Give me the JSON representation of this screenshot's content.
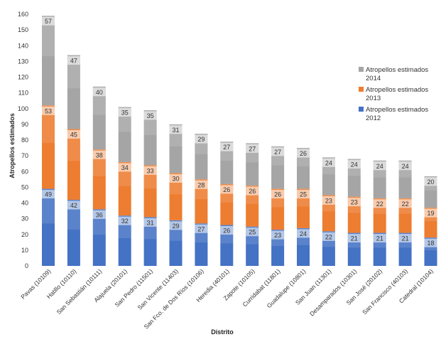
{
  "chart_data": {
    "type": "bar",
    "stacked": true,
    "title": "",
    "xlabel": "Distrito",
    "ylabel": "Atropellos estimados",
    "ylim": [
      0,
      160
    ],
    "yticks": [
      0,
      10,
      20,
      30,
      40,
      50,
      60,
      70,
      80,
      90,
      100,
      110,
      120,
      130,
      140,
      150,
      160
    ],
    "grid": false,
    "legend_position": "right",
    "categories": [
      "Pavas (10109)",
      "Hatillo (10110)",
      "San Sebastián (10111)",
      "Alajuela (20101)",
      "San Pedro (11501)",
      "San Vicente (11403)",
      "San Fco. de Dos Ríos (10106)",
      "Heredia (40101)",
      "Zapote (10105)",
      "Curridabat (11801)",
      "Guadalupe (10801)",
      "San Juan (11301)",
      "Desamparados (10301)",
      "San José (20102)",
      "San Francisco (40103)",
      "Catedral (10104)"
    ],
    "series": [
      {
        "name": "Atropellos estimados 2012",
        "color": "#4472c4",
        "values": [
          49,
          42,
          36,
          32,
          31,
          29,
          27,
          26,
          25,
          23,
          24,
          22,
          21,
          21,
          21,
          18
        ]
      },
      {
        "name": "Atropellos estimados 2013",
        "color": "#ed7d31",
        "values": [
          53,
          45,
          38,
          34,
          33,
          30,
          28,
          26,
          26,
          26,
          25,
          23,
          23,
          22,
          22,
          19
        ]
      },
      {
        "name": "Atropellos estimados 2014",
        "color": "#a5a5a5",
        "values": [
          57,
          47,
          40,
          35,
          35,
          31,
          29,
          27,
          27,
          27,
          26,
          24,
          24,
          24,
          24,
          20
        ]
      }
    ]
  }
}
